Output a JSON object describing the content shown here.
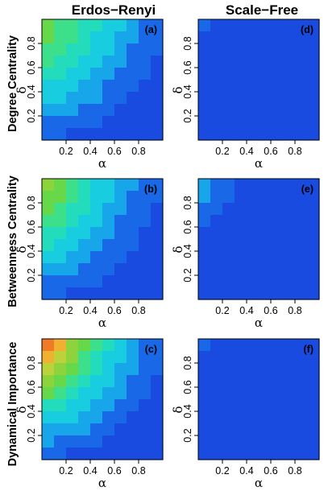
{
  "chart_data": {
    "type": "heatmap",
    "column_titles": [
      "Erdos−Renyi",
      "Scale−Free"
    ],
    "row_titles": [
      "Degree Centrality",
      "Betweenness Centrality",
      "Dynamical Importance"
    ],
    "xlabel": "α",
    "ylabel": "δ",
    "xlim": [
      0,
      1
    ],
    "ylim": [
      0,
      1
    ],
    "xticks": [
      "0.2",
      "0.4",
      "0.6",
      "0.8"
    ],
    "yticks": [
      "0.2",
      "0.4",
      "0.6",
      "0.8"
    ],
    "panels": [
      {
        "tag": "(a)",
        "row": 0,
        "col": 0,
        "x": [
          0.05,
          0.15,
          0.25,
          0.35,
          0.45,
          0.55,
          0.65,
          0.75,
          0.85,
          0.95
        ],
        "y": [
          0.95,
          0.85,
          0.75,
          0.65,
          0.55,
          0.45,
          0.35,
          0.25,
          0.15,
          0.05
        ],
        "z": [
          [
            0.52,
            0.49,
            0.45,
            0.4,
            0.35,
            0.3,
            0.25,
            0.2,
            0.16,
            0.12
          ],
          [
            0.5,
            0.47,
            0.43,
            0.38,
            0.33,
            0.28,
            0.23,
            0.18,
            0.14,
            0.11
          ],
          [
            0.47,
            0.44,
            0.4,
            0.35,
            0.3,
            0.25,
            0.2,
            0.16,
            0.12,
            0.09
          ],
          [
            0.43,
            0.4,
            0.36,
            0.32,
            0.27,
            0.22,
            0.18,
            0.14,
            0.1,
            0.08
          ],
          [
            0.38,
            0.35,
            0.32,
            0.28,
            0.24,
            0.19,
            0.15,
            0.12,
            0.09,
            0.06
          ],
          [
            0.33,
            0.31,
            0.28,
            0.24,
            0.2,
            0.16,
            0.13,
            0.1,
            0.07,
            0.05
          ],
          [
            0.28,
            0.26,
            0.23,
            0.2,
            0.17,
            0.13,
            0.1,
            0.08,
            0.05,
            0.04
          ],
          [
            0.22,
            0.2,
            0.18,
            0.16,
            0.13,
            0.1,
            0.08,
            0.06,
            0.04,
            0.03
          ],
          [
            0.16,
            0.15,
            0.13,
            0.11,
            0.09,
            0.07,
            0.05,
            0.04,
            0.03,
            0.02
          ],
          [
            0.1,
            0.09,
            0.08,
            0.07,
            0.06,
            0.04,
            0.03,
            0.02,
            0.02,
            0.01
          ]
        ]
      },
      {
        "tag": "(d)",
        "row": 0,
        "col": 1,
        "x": [
          0.05,
          0.15,
          0.25,
          0.35,
          0.45,
          0.55,
          0.65,
          0.75,
          0.85,
          0.95
        ],
        "y": [
          0.95,
          0.85,
          0.75,
          0.65,
          0.55,
          0.45,
          0.35,
          0.25,
          0.15,
          0.05
        ],
        "z": [
          [
            0.09,
            0.06,
            0.04,
            0.03,
            0.02,
            0.02,
            0.02,
            0.02,
            0.02,
            0.02
          ],
          [
            0.06,
            0.04,
            0.03,
            0.02,
            0.02,
            0.02,
            0.02,
            0.02,
            0.02,
            0.02
          ],
          [
            0.04,
            0.03,
            0.02,
            0.02,
            0.02,
            0.02,
            0.02,
            0.02,
            0.02,
            0.02
          ],
          [
            0.03,
            0.02,
            0.02,
            0.02,
            0.02,
            0.02,
            0.02,
            0.02,
            0.02,
            0.02
          ],
          [
            0.02,
            0.02,
            0.02,
            0.02,
            0.02,
            0.02,
            0.02,
            0.02,
            0.02,
            0.02
          ],
          [
            0.02,
            0.02,
            0.02,
            0.02,
            0.02,
            0.02,
            0.02,
            0.02,
            0.02,
            0.02
          ],
          [
            0.02,
            0.02,
            0.02,
            0.02,
            0.02,
            0.02,
            0.02,
            0.02,
            0.02,
            0.02
          ],
          [
            0.02,
            0.02,
            0.02,
            0.02,
            0.02,
            0.02,
            0.02,
            0.02,
            0.02,
            0.02
          ],
          [
            0.02,
            0.02,
            0.02,
            0.02,
            0.02,
            0.02,
            0.02,
            0.02,
            0.02,
            0.02
          ],
          [
            0.02,
            0.02,
            0.02,
            0.02,
            0.02,
            0.02,
            0.02,
            0.02,
            0.02,
            0.02
          ]
        ]
      },
      {
        "tag": "(b)",
        "row": 1,
        "col": 0,
        "x": [
          0.05,
          0.15,
          0.25,
          0.35,
          0.45,
          0.55,
          0.65,
          0.75,
          0.85,
          0.95
        ],
        "y": [
          0.95,
          0.85,
          0.75,
          0.65,
          0.55,
          0.45,
          0.35,
          0.25,
          0.15,
          0.05
        ],
        "z": [
          [
            0.64,
            0.56,
            0.48,
            0.4,
            0.33,
            0.27,
            0.22,
            0.17,
            0.13,
            0.1
          ],
          [
            0.58,
            0.52,
            0.45,
            0.38,
            0.31,
            0.25,
            0.2,
            0.16,
            0.12,
            0.09
          ],
          [
            0.52,
            0.47,
            0.41,
            0.35,
            0.29,
            0.23,
            0.18,
            0.14,
            0.11,
            0.08
          ],
          [
            0.46,
            0.42,
            0.37,
            0.31,
            0.26,
            0.21,
            0.16,
            0.12,
            0.09,
            0.07
          ],
          [
            0.4,
            0.37,
            0.32,
            0.27,
            0.22,
            0.18,
            0.14,
            0.11,
            0.08,
            0.06
          ],
          [
            0.34,
            0.31,
            0.28,
            0.23,
            0.19,
            0.15,
            0.12,
            0.09,
            0.07,
            0.05
          ],
          [
            0.28,
            0.26,
            0.23,
            0.19,
            0.16,
            0.12,
            0.1,
            0.07,
            0.05,
            0.04
          ],
          [
            0.22,
            0.2,
            0.18,
            0.15,
            0.12,
            0.1,
            0.07,
            0.06,
            0.04,
            0.03
          ],
          [
            0.16,
            0.15,
            0.13,
            0.11,
            0.09,
            0.07,
            0.05,
            0.04,
            0.03,
            0.02
          ],
          [
            0.1,
            0.09,
            0.08,
            0.07,
            0.06,
            0.04,
            0.03,
            0.02,
            0.02,
            0.01
          ]
        ]
      },
      {
        "tag": "(e)",
        "row": 1,
        "col": 1,
        "x": [
          0.05,
          0.15,
          0.25,
          0.35,
          0.45,
          0.55,
          0.65,
          0.75,
          0.85,
          0.95
        ],
        "y": [
          0.95,
          0.85,
          0.75,
          0.65,
          0.55,
          0.45,
          0.35,
          0.25,
          0.15,
          0.05
        ],
        "z": [
          [
            0.24,
            0.16,
            0.1,
            0.07,
            0.05,
            0.04,
            0.03,
            0.02,
            0.02,
            0.02
          ],
          [
            0.18,
            0.13,
            0.09,
            0.06,
            0.04,
            0.03,
            0.02,
            0.02,
            0.02,
            0.02
          ],
          [
            0.13,
            0.1,
            0.07,
            0.05,
            0.03,
            0.02,
            0.02,
            0.02,
            0.02,
            0.02
          ],
          [
            0.1,
            0.07,
            0.05,
            0.04,
            0.03,
            0.02,
            0.02,
            0.02,
            0.02,
            0.02
          ],
          [
            0.07,
            0.05,
            0.04,
            0.03,
            0.02,
            0.02,
            0.02,
            0.02,
            0.02,
            0.02
          ],
          [
            0.05,
            0.04,
            0.03,
            0.02,
            0.02,
            0.02,
            0.02,
            0.02,
            0.02,
            0.02
          ],
          [
            0.04,
            0.03,
            0.02,
            0.02,
            0.02,
            0.02,
            0.02,
            0.02,
            0.02,
            0.02
          ],
          [
            0.03,
            0.02,
            0.02,
            0.02,
            0.02,
            0.02,
            0.02,
            0.02,
            0.02,
            0.02
          ],
          [
            0.02,
            0.02,
            0.02,
            0.02,
            0.02,
            0.02,
            0.02,
            0.02,
            0.02,
            0.02
          ],
          [
            0.02,
            0.02,
            0.02,
            0.02,
            0.02,
            0.02,
            0.02,
            0.02,
            0.02,
            0.02
          ]
        ]
      },
      {
        "tag": "(c)",
        "row": 2,
        "col": 0,
        "x": [
          0.05,
          0.15,
          0.25,
          0.35,
          0.45,
          0.55,
          0.65,
          0.75,
          0.85,
          0.95
        ],
        "y": [
          0.95,
          0.85,
          0.75,
          0.65,
          0.55,
          0.45,
          0.35,
          0.25,
          0.15,
          0.05
        ],
        "z": [
          [
            0.9,
            0.78,
            0.64,
            0.52,
            0.42,
            0.34,
            0.27,
            0.21,
            0.16,
            0.12
          ],
          [
            0.8,
            0.7,
            0.59,
            0.48,
            0.39,
            0.31,
            0.25,
            0.19,
            0.15,
            0.11
          ],
          [
            0.7,
            0.62,
            0.53,
            0.44,
            0.35,
            0.28,
            0.22,
            0.17,
            0.13,
            0.1
          ],
          [
            0.6,
            0.54,
            0.47,
            0.39,
            0.31,
            0.25,
            0.19,
            0.15,
            0.11,
            0.08
          ],
          [
            0.5,
            0.46,
            0.4,
            0.33,
            0.27,
            0.21,
            0.17,
            0.13,
            0.1,
            0.07
          ],
          [
            0.41,
            0.38,
            0.33,
            0.28,
            0.22,
            0.18,
            0.14,
            0.11,
            0.08,
            0.06
          ],
          [
            0.32,
            0.3,
            0.26,
            0.22,
            0.18,
            0.14,
            0.11,
            0.08,
            0.06,
            0.05
          ],
          [
            0.24,
            0.22,
            0.2,
            0.17,
            0.14,
            0.11,
            0.08,
            0.06,
            0.05,
            0.04
          ],
          [
            0.17,
            0.16,
            0.14,
            0.12,
            0.1,
            0.08,
            0.06,
            0.04,
            0.03,
            0.03
          ],
          [
            0.1,
            0.09,
            0.08,
            0.07,
            0.06,
            0.05,
            0.04,
            0.03,
            0.02,
            0.02
          ]
        ]
      },
      {
        "tag": "(f)",
        "row": 2,
        "col": 1,
        "x": [
          0.05,
          0.15,
          0.25,
          0.35,
          0.45,
          0.55,
          0.65,
          0.75,
          0.85,
          0.95
        ],
        "y": [
          0.95,
          0.85,
          0.75,
          0.65,
          0.55,
          0.45,
          0.35,
          0.25,
          0.15,
          0.05
        ],
        "z": [
          [
            0.14,
            0.08,
            0.06,
            0.05,
            0.06,
            0.04,
            0.05,
            0.03,
            0.03,
            0.02
          ],
          [
            0.08,
            0.06,
            0.08,
            0.05,
            0.06,
            0.05,
            0.04,
            0.06,
            0.03,
            0.02
          ],
          [
            0.06,
            0.08,
            0.06,
            0.07,
            0.05,
            0.06,
            0.05,
            0.04,
            0.03,
            0.02
          ],
          [
            0.05,
            0.07,
            0.05,
            0.06,
            0.07,
            0.05,
            0.06,
            0.04,
            0.03,
            0.02
          ],
          [
            0.04,
            0.06,
            0.07,
            0.05,
            0.06,
            0.07,
            0.05,
            0.03,
            0.02,
            0.02
          ],
          [
            0.03,
            0.05,
            0.06,
            0.07,
            0.05,
            0.06,
            0.04,
            0.05,
            0.03,
            0.02
          ],
          [
            0.03,
            0.04,
            0.06,
            0.05,
            0.06,
            0.05,
            0.06,
            0.04,
            0.02,
            0.02
          ],
          [
            0.02,
            0.04,
            0.05,
            0.06,
            0.04,
            0.05,
            0.04,
            0.03,
            0.02,
            0.02
          ],
          [
            0.02,
            0.03,
            0.04,
            0.05,
            0.05,
            0.04,
            0.03,
            0.03,
            0.02,
            0.02
          ],
          [
            0.02,
            0.02,
            0.03,
            0.04,
            0.04,
            0.03,
            0.03,
            0.02,
            0.02,
            0.02
          ]
        ]
      }
    ],
    "colormap": [
      "#1a4be0",
      "#1868e8",
      "#17a6ea",
      "#18cde0",
      "#23dcbc",
      "#3de08a",
      "#66d84a",
      "#8cd33c",
      "#bcd23a",
      "#f0b030",
      "#f07a26",
      "#d84820"
    ],
    "grid": false,
    "legend": "none"
  }
}
